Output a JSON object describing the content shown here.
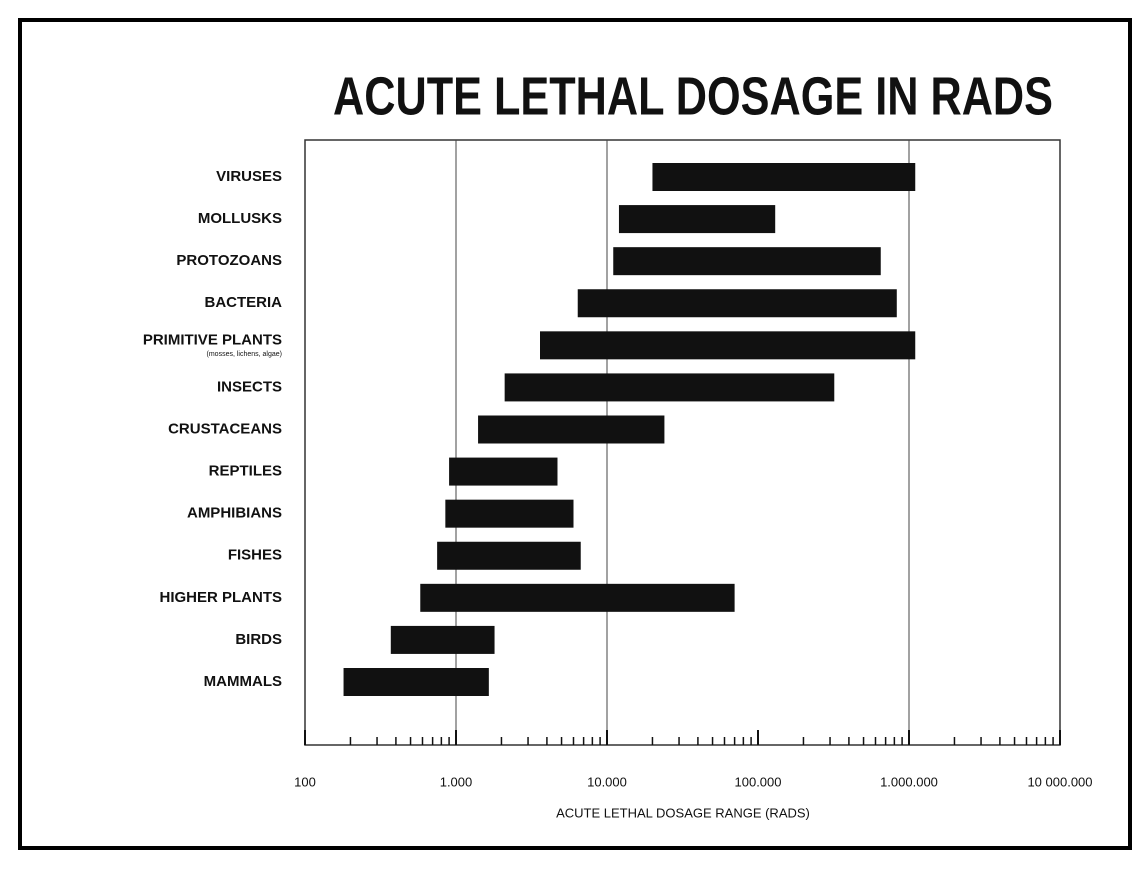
{
  "chart_data": {
    "type": "range",
    "title": "ACUTE LETHAL DOSAGE IN RADS",
    "x_label": "ACUTE LETHAL DOSAGE RANGE (RADS)",
    "categories": [
      "VIRUSES",
      "MOLLUSKS",
      "PROTOZOANS",
      "BACTERIA",
      {
        "label": "PRIMITIVE PLANTS",
        "note": "(mosses, lichens, algae)"
      },
      "INSECTS",
      "CRUSTACEANS",
      "REPTILES",
      "AMPHIBIANS",
      "FISHES",
      "HIGHER PLANTS",
      "BIRDS",
      "MAMMALS"
    ],
    "low": [
      20000,
      12000,
      11000,
      6400,
      3600,
      2100,
      1400,
      900,
      850,
      750,
      580,
      370,
      180
    ],
    "high": [
      1100000,
      130000,
      650000,
      830000,
      1100000,
      320000,
      24000,
      4700,
      6000,
      6700,
      70000,
      1800,
      1650
    ],
    "color": "#111111",
    "log_x": true,
    "xlim": [
      100,
      10000000
    ],
    "xticks": [
      100,
      {
        "value": 1000,
        "label": "1.000"
      },
      {
        "value": 10000,
        "label": "10.000"
      },
      {
        "value": 100000,
        "label": "100.000"
      },
      {
        "value": 1000000,
        "label": "1.000.000"
      },
      {
        "value": 10000000,
        "label": "10 000.000"
      }
    ],
    "xticks_minor": [
      200,
      300,
      400,
      500,
      600,
      700,
      800,
      900,
      2000,
      3000,
      4000,
      5000,
      6000,
      7000,
      8000,
      9000,
      20000,
      30000,
      40000,
      50000,
      60000,
      70000,
      80000,
      90000,
      200000,
      300000,
      400000,
      500000,
      600000,
      700000,
      800000,
      900000,
      2000000,
      3000000,
      4000000,
      5000000,
      6000000,
      7000000,
      8000000,
      9000000
    ],
    "xgrid": [
      1000,
      10000,
      1000000
    ]
  }
}
